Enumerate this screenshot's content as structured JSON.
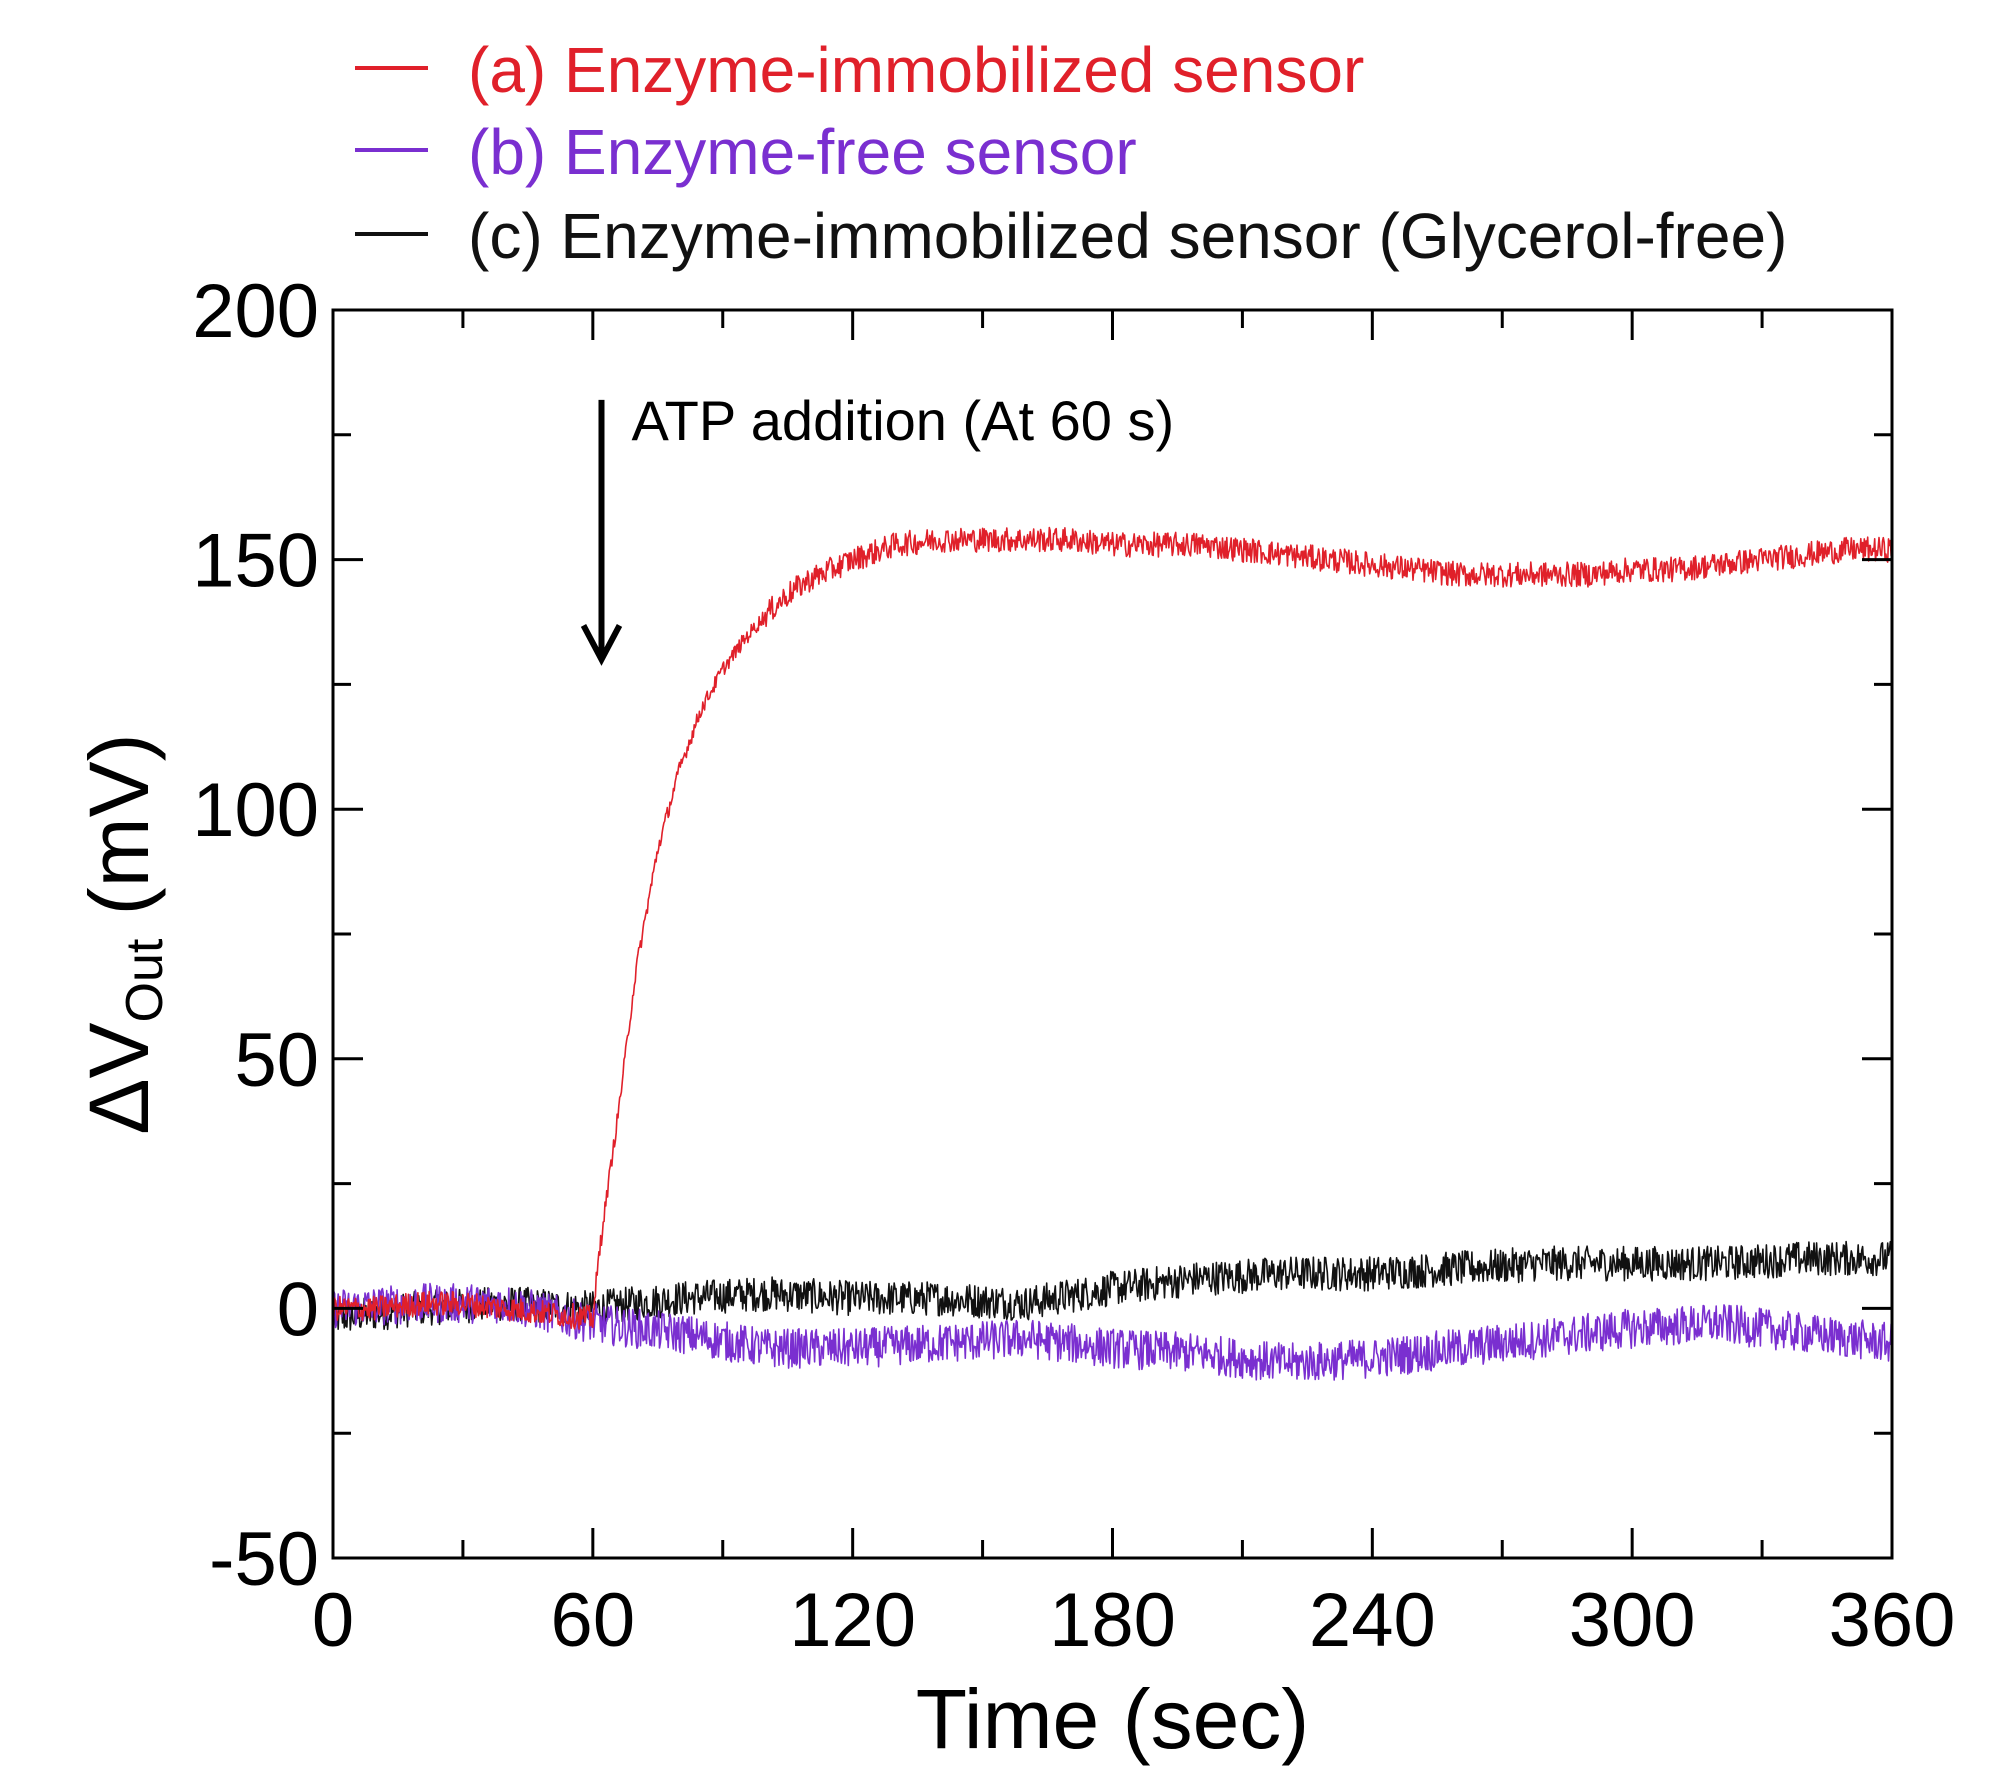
{
  "chart_data": {
    "type": "line",
    "title": "",
    "xlabel": "Time (sec)",
    "ylabel_main": "ΔV",
    "ylabel_sub": "Out",
    "ylabel_unit": " (mV)",
    "xlim": [
      0,
      360
    ],
    "ylim": [
      -50,
      200
    ],
    "xticks": [
      0,
      60,
      120,
      180,
      240,
      300,
      360
    ],
    "xtick_labels": [
      "0",
      "60",
      "120",
      "180",
      "240",
      "300",
      "360"
    ],
    "yticks": [
      -50,
      0,
      50,
      100,
      150,
      200
    ],
    "ytick_labels": [
      "-50",
      "0",
      "50",
      "100",
      "150",
      "200"
    ],
    "minor_ticks": true,
    "grid": false,
    "legend_position": "top",
    "annotation": {
      "text": "ATP addition (At 60 s)",
      "x": 62,
      "y_from": 182,
      "y_to": 130
    },
    "series": [
      {
        "name": "(a) Enzyme-immobilized sensor",
        "color": "#e0202a",
        "x": [
          0,
          10,
          20,
          30,
          40,
          50,
          60,
          62,
          66,
          70,
          75,
          80,
          85,
          90,
          95,
          100,
          105,
          110,
          120,
          130,
          140,
          150,
          160,
          170,
          180,
          190,
          200,
          210,
          220,
          230,
          240,
          250,
          260,
          270,
          280,
          290,
          300,
          310,
          320,
          330,
          340,
          350,
          360
        ],
        "y": [
          0,
          0,
          1,
          1,
          0,
          -1,
          -2,
          15,
          40,
          68,
          92,
          108,
          120,
          128,
          134,
          139,
          143,
          146,
          150,
          153,
          154,
          154,
          154,
          154,
          153,
          153,
          153,
          152,
          151,
          150,
          149,
          148,
          147,
          147,
          147,
          147,
          148,
          148,
          149,
          150,
          151,
          152,
          152
        ],
        "noise": 2.5
      },
      {
        "name": "(b) Enzyme-free sensor",
        "color": "#7a2fd0",
        "x": [
          0,
          20,
          40,
          60,
          80,
          100,
          120,
          140,
          160,
          180,
          200,
          220,
          240,
          260,
          280,
          300,
          320,
          340,
          360
        ],
        "y": [
          0,
          1,
          1,
          -3,
          -5,
          -8,
          -8,
          -7,
          -6,
          -8,
          -9,
          -11,
          -10,
          -8,
          -6,
          -4,
          -3,
          -5,
          -7
        ],
        "noise": 4
      },
      {
        "name": "(c) Enzyme-immobilized sensor (Glycerol-free)",
        "color": "#111111",
        "x": [
          0,
          20,
          40,
          60,
          80,
          100,
          120,
          140,
          160,
          180,
          200,
          220,
          240,
          260,
          280,
          300,
          320,
          340,
          360
        ],
        "y": [
          -2,
          0,
          1,
          0,
          2,
          3,
          2,
          2,
          1,
          4,
          6,
          7,
          7,
          8,
          9,
          9,
          9,
          10,
          10
        ],
        "noise": 3.5
      }
    ]
  }
}
